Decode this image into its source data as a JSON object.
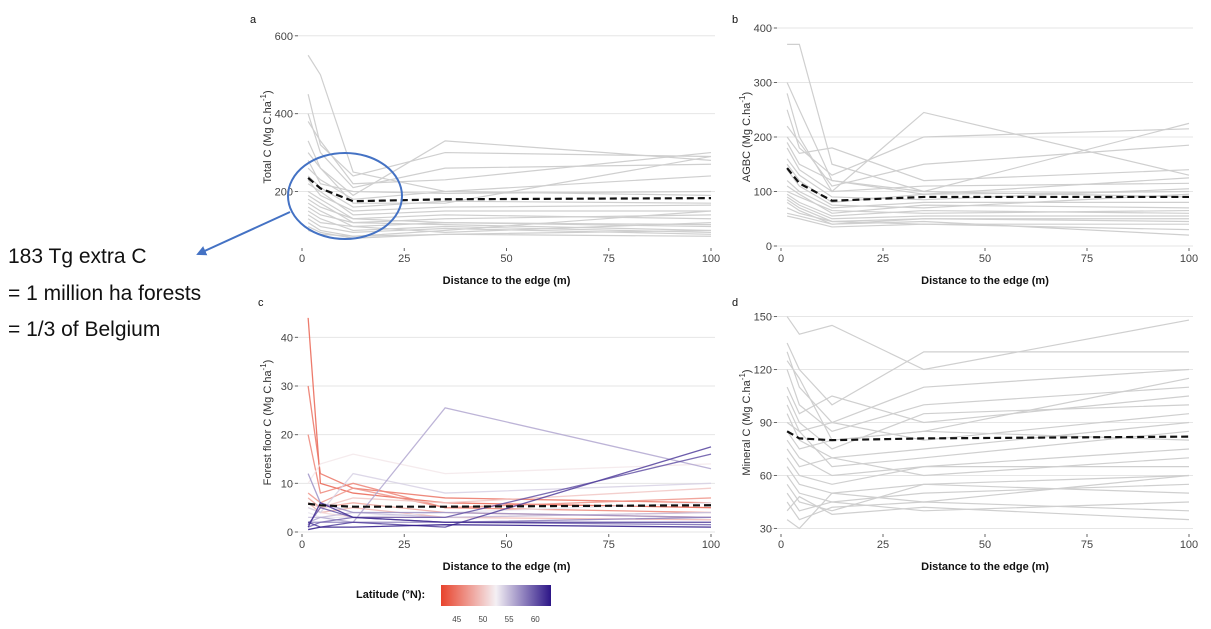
{
  "annotation": {
    "lines": [
      "183 Tg extra C",
      "= 1 million ha forests",
      "= 1/3 of Belgium"
    ],
    "arrow_color": "#4472c4",
    "circle_color": "#4472c4"
  },
  "colors": {
    "grid": "#e6e6e6",
    "individual_line": "#cfcfcf",
    "mean_line": "#111111",
    "lat_low": "#e8432c",
    "lat_mid": "#f4f0f4",
    "lat_high": "#2c1587"
  },
  "legend": {
    "title": "Latitude (°N):",
    "ticks": [
      "45",
      "50",
      "55",
      "60"
    ],
    "range": [
      42,
      63
    ]
  },
  "chart_data": [
    {
      "type": "line",
      "panel": "a",
      "xlabel": "Distance to the edge (m)",
      "ylabel_base": "Total C  (Mg C.ha",
      "ylabel_sup": "-1",
      "ylabel_end": ")",
      "xlim": [
        0,
        100
      ],
      "ylim": [
        60,
        620
      ],
      "xticks": [
        0,
        25,
        50,
        75,
        100
      ],
      "yticks": [
        200,
        400,
        600
      ],
      "grid": true,
      "x": [
        1.5,
        4.5,
        12.5,
        35,
        100
      ],
      "mean": [
        235,
        208,
        175,
        180,
        183
      ],
      "gray_series": [
        [
          550,
          500,
          250,
          200,
          190
        ],
        [
          450,
          320,
          240,
          300,
          290
        ],
        [
          400,
          300,
          210,
          260,
          270
        ],
        [
          380,
          330,
          220,
          230,
          300
        ],
        [
          330,
          260,
          190,
          330,
          280
        ],
        [
          300,
          260,
          170,
          170,
          290
        ],
        [
          280,
          220,
          200,
          195,
          200
        ],
        [
          260,
          230,
          180,
          200,
          240
        ],
        [
          240,
          210,
          160,
          175,
          170
        ],
        [
          230,
          190,
          150,
          160,
          165
        ],
        [
          220,
          200,
          140,
          150,
          150
        ],
        [
          200,
          180,
          130,
          140,
          130
        ],
        [
          190,
          170,
          120,
          130,
          140
        ],
        [
          180,
          160,
          130,
          120,
          115
        ],
        [
          170,
          150,
          110,
          120,
          110
        ],
        [
          160,
          140,
          120,
          115,
          100
        ],
        [
          150,
          130,
          100,
          110,
          95
        ],
        [
          140,
          120,
          110,
          95,
          120
        ],
        [
          130,
          110,
          95,
          105,
          90
        ],
        [
          120,
          100,
          85,
          90,
          85
        ],
        [
          110,
          95,
          80,
          90,
          100
        ],
        [
          100,
          90,
          85,
          100,
          150
        ]
      ]
    },
    {
      "type": "line",
      "panel": "b",
      "xlabel": "Distance to the edge (m)",
      "ylabel_base": "AGBC  (Mg C.ha",
      "ylabel_sup": "-1",
      "ylabel_end": ")",
      "xlim": [
        0,
        100
      ],
      "ylim": [
        0,
        400
      ],
      "xticks": [
        0,
        25,
        50,
        75,
        100
      ],
      "yticks": [
        0,
        100,
        200,
        300,
        400
      ],
      "grid": true,
      "x": [
        1.5,
        4.5,
        12.5,
        35,
        100
      ],
      "mean": [
        143,
        115,
        83,
        90,
        90
      ],
      "gray_series": [
        [
          370,
          370,
          150,
          100,
          90
        ],
        [
          300,
          250,
          120,
          100,
          225
        ],
        [
          280,
          200,
          100,
          245,
          130
        ],
        [
          250,
          180,
          130,
          200,
          215
        ],
        [
          220,
          190,
          110,
          150,
          185
        ],
        [
          200,
          170,
          180,
          120,
          140
        ],
        [
          190,
          150,
          120,
          95,
          125
        ],
        [
          180,
          140,
          100,
          110,
          115
        ],
        [
          160,
          130,
          90,
          85,
          105
        ],
        [
          150,
          120,
          80,
          95,
          100
        ],
        [
          140,
          110,
          75,
          70,
          95
        ],
        [
          120,
          100,
          70,
          80,
          80
        ],
        [
          110,
          95,
          60,
          75,
          70
        ],
        [
          100,
          90,
          65,
          60,
          65
        ],
        [
          95,
          80,
          55,
          65,
          60
        ],
        [
          90,
          75,
          50,
          55,
          55
        ],
        [
          85,
          70,
          45,
          50,
          50
        ],
        [
          80,
          65,
          40,
          50,
          45
        ],
        [
          70,
          60,
          45,
          40,
          40
        ],
        [
          60,
          55,
          40,
          45,
          20
        ],
        [
          55,
          50,
          35,
          40,
          30
        ]
      ]
    },
    {
      "type": "line",
      "panel": "c",
      "xlabel": "Distance to the edge (m)",
      "ylabel_base": "Forest floor C  (Mg C.ha",
      "ylabel_sup": "-1",
      "ylabel_end": ")",
      "xlim": [
        0,
        100
      ],
      "ylim": [
        0,
        45
      ],
      "xticks": [
        0,
        25,
        50,
        75,
        100
      ],
      "yticks": [
        0,
        10,
        20,
        30,
        40
      ],
      "grid": true,
      "x": [
        1.5,
        4.5,
        12.5,
        35,
        100
      ],
      "mean": [
        5.8,
        5.5,
        5.2,
        5.2,
        5.5
      ],
      "color_series": [
        {
          "lat": 44,
          "values": [
            44,
            10,
            8,
            6,
            5
          ]
        },
        {
          "lat": 45,
          "values": [
            30,
            12,
            9,
            7,
            6
          ]
        },
        {
          "lat": 46,
          "values": [
            20,
            8,
            10,
            5,
            4
          ]
        },
        {
          "lat": 47,
          "values": [
            8,
            6,
            9,
            5,
            7
          ]
        },
        {
          "lat": 48,
          "values": [
            7,
            5,
            6,
            4,
            3
          ]
        },
        {
          "lat": 49,
          "values": [
            6,
            4,
            5,
            3,
            2.5
          ]
        },
        {
          "lat": 50,
          "values": [
            6,
            5,
            7,
            6,
            9
          ]
        },
        {
          "lat": 51,
          "values": [
            5,
            4,
            3,
            3,
            4
          ]
        },
        {
          "lat": 52,
          "values": [
            10,
            14,
            16,
            12,
            14
          ]
        },
        {
          "lat": 53,
          "values": [
            4,
            3,
            3,
            4,
            6
          ]
        },
        {
          "lat": 54,
          "values": [
            5,
            4,
            12,
            8,
            10
          ]
        },
        {
          "lat": 55,
          "values": [
            3,
            3,
            4,
            3,
            4
          ]
        },
        {
          "lat": 56,
          "values": [
            2,
            3,
            2,
            25.5,
            13
          ]
        },
        {
          "lat": 57,
          "values": [
            12,
            6,
            4,
            4,
            3
          ]
        },
        {
          "lat": 58,
          "values": [
            2,
            2,
            2,
            2,
            3
          ]
        },
        {
          "lat": 59,
          "values": [
            1,
            2,
            3,
            2,
            1.5
          ]
        },
        {
          "lat": 60,
          "values": [
            1.5,
            5,
            3,
            3,
            16
          ]
        },
        {
          "lat": 61,
          "values": [
            2,
            1,
            2,
            1,
            17.5
          ]
        },
        {
          "lat": 62,
          "values": [
            1,
            6,
            3,
            2,
            2
          ]
        },
        {
          "lat": 63,
          "values": [
            0.5,
            1,
            1,
            1.5,
            1
          ]
        }
      ]
    },
    {
      "type": "line",
      "panel": "d",
      "xlabel": "Distance to the edge (m)",
      "ylabel_base": "Mineral C  (Mg C.ha",
      "ylabel_sup": "-1",
      "ylabel_end": ")",
      "xlim": [
        0,
        100
      ],
      "ylim": [
        28,
        152
      ],
      "xticks": [
        0,
        25,
        50,
        75,
        100
      ],
      "yticks": [
        30,
        60,
        90,
        120,
        150
      ],
      "grid": true,
      "x": [
        1.5,
        4.5,
        12.5,
        35,
        100
      ],
      "mean": [
        85,
        81,
        80,
        81,
        82
      ],
      "gray_series": [
        [
          150,
          140,
          145,
          120,
          148
        ],
        [
          135,
          120,
          100,
          130,
          130
        ],
        [
          130,
          110,
          90,
          110,
          120
        ],
        [
          125,
          115,
          80,
          85,
          115
        ],
        [
          120,
          100,
          85,
          100,
          110
        ],
        [
          110,
          95,
          105,
          90,
          105
        ],
        [
          105,
          90,
          75,
          95,
          100
        ],
        [
          100,
          85,
          90,
          80,
          95
        ],
        [
          95,
          80,
          70,
          75,
          90
        ],
        [
          90,
          85,
          65,
          70,
          85
        ],
        [
          85,
          75,
          80,
          85,
          80
        ],
        [
          80,
          70,
          60,
          65,
          75
        ],
        [
          75,
          65,
          70,
          60,
          70
        ],
        [
          70,
          60,
          55,
          65,
          65
        ],
        [
          65,
          55,
          50,
          55,
          60
        ],
        [
          60,
          50,
          45,
          50,
          55
        ],
        [
          55,
          45,
          40,
          55,
          50
        ],
        [
          50,
          40,
          45,
          40,
          45
        ],
        [
          45,
          35,
          42,
          45,
          40
        ],
        [
          40,
          48,
          38,
          42,
          35
        ],
        [
          35,
          30,
          50,
          45,
          60
        ]
      ]
    }
  ]
}
